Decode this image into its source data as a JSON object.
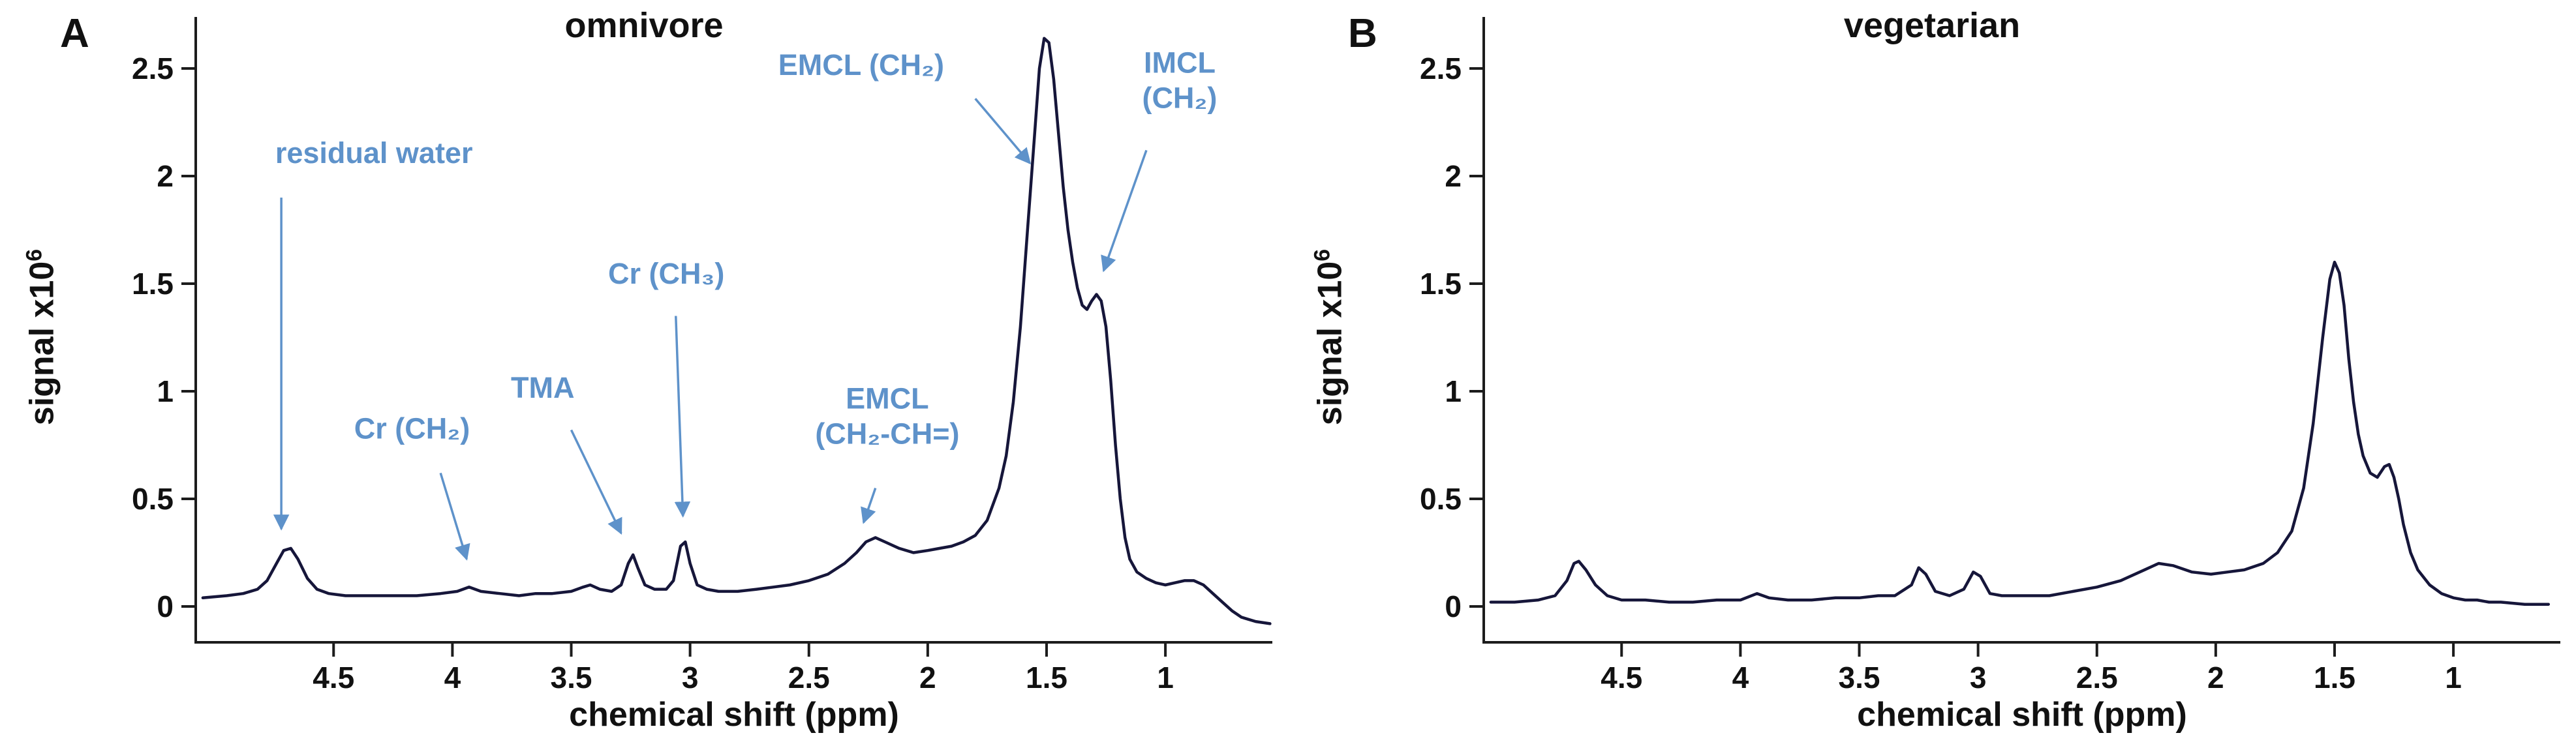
{
  "figure": {
    "axis_color": "#1c1c1c",
    "curve_color": "#16163a",
    "annotation_color": "#5e92ca",
    "text_color": "#111111"
  },
  "chart_data": [
    {
      "type": "line",
      "panel_label": "A",
      "title": "omnivore",
      "xlabel": "chemical shift (ppm)",
      "ylabel": "signal x10",
      "ylabel_exponent": "6",
      "x_axis_reversed": true,
      "xlim": [
        5.08,
        0.55
      ],
      "ylim": [
        -0.17,
        2.72
      ],
      "grid": false,
      "legend": "none",
      "x_ticks": [
        [
          4.5,
          "4.5"
        ],
        [
          4,
          "4"
        ],
        [
          3.5,
          "3.5"
        ],
        [
          3,
          "3"
        ],
        [
          2.5,
          "2.5"
        ],
        [
          2,
          "2"
        ],
        [
          1.5,
          "1.5"
        ],
        [
          1,
          "1"
        ]
      ],
      "y_ticks": [
        [
          0,
          "0"
        ],
        [
          0.5,
          "0.5"
        ],
        [
          1,
          "1"
        ],
        [
          1.5,
          "1.5"
        ],
        [
          2,
          "2"
        ],
        [
          2.5,
          "2.5"
        ]
      ],
      "series": [
        {
          "name": "omnivore spectrum",
          "points": [
            [
              5.05,
              0.04
            ],
            [
              4.95,
              0.05
            ],
            [
              4.88,
              0.06
            ],
            [
              4.82,
              0.08
            ],
            [
              4.78,
              0.12
            ],
            [
              4.74,
              0.2
            ],
            [
              4.71,
              0.26
            ],
            [
              4.68,
              0.27
            ],
            [
              4.65,
              0.22
            ],
            [
              4.61,
              0.13
            ],
            [
              4.57,
              0.08
            ],
            [
              4.52,
              0.06
            ],
            [
              4.45,
              0.05
            ],
            [
              4.35,
              0.05
            ],
            [
              4.25,
              0.05
            ],
            [
              4.15,
              0.05
            ],
            [
              4.05,
              0.06
            ],
            [
              3.98,
              0.07
            ],
            [
              3.93,
              0.09
            ],
            [
              3.88,
              0.07
            ],
            [
              3.8,
              0.06
            ],
            [
              3.72,
              0.05
            ],
            [
              3.65,
              0.06
            ],
            [
              3.58,
              0.06
            ],
            [
              3.5,
              0.07
            ],
            [
              3.45,
              0.09
            ],
            [
              3.42,
              0.1
            ],
            [
              3.38,
              0.08
            ],
            [
              3.33,
              0.07
            ],
            [
              3.29,
              0.1
            ],
            [
              3.26,
              0.2
            ],
            [
              3.24,
              0.24
            ],
            [
              3.22,
              0.18
            ],
            [
              3.19,
              0.1
            ],
            [
              3.15,
              0.08
            ],
            [
              3.1,
              0.08
            ],
            [
              3.07,
              0.12
            ],
            [
              3.04,
              0.28
            ],
            [
              3.02,
              0.3
            ],
            [
              3.0,
              0.2
            ],
            [
              2.97,
              0.1
            ],
            [
              2.93,
              0.08
            ],
            [
              2.88,
              0.07
            ],
            [
              2.8,
              0.07
            ],
            [
              2.72,
              0.08
            ],
            [
              2.65,
              0.09
            ],
            [
              2.58,
              0.1
            ],
            [
              2.5,
              0.12
            ],
            [
              2.42,
              0.15
            ],
            [
              2.35,
              0.2
            ],
            [
              2.3,
              0.25
            ],
            [
              2.26,
              0.3
            ],
            [
              2.22,
              0.32
            ],
            [
              2.18,
              0.3
            ],
            [
              2.12,
              0.27
            ],
            [
              2.06,
              0.25
            ],
            [
              2.0,
              0.26
            ],
            [
              1.95,
              0.27
            ],
            [
              1.9,
              0.28
            ],
            [
              1.85,
              0.3
            ],
            [
              1.8,
              0.33
            ],
            [
              1.75,
              0.4
            ],
            [
              1.7,
              0.55
            ],
            [
              1.67,
              0.7
            ],
            [
              1.64,
              0.95
            ],
            [
              1.61,
              1.3
            ],
            [
              1.58,
              1.75
            ],
            [
              1.55,
              2.2
            ],
            [
              1.53,
              2.5
            ],
            [
              1.51,
              2.64
            ],
            [
              1.49,
              2.62
            ],
            [
              1.47,
              2.45
            ],
            [
              1.45,
              2.2
            ],
            [
              1.43,
              1.95
            ],
            [
              1.41,
              1.75
            ],
            [
              1.39,
              1.6
            ],
            [
              1.37,
              1.48
            ],
            [
              1.35,
              1.4
            ],
            [
              1.33,
              1.38
            ],
            [
              1.31,
              1.42
            ],
            [
              1.29,
              1.45
            ],
            [
              1.27,
              1.42
            ],
            [
              1.25,
              1.3
            ],
            [
              1.23,
              1.05
            ],
            [
              1.21,
              0.75
            ],
            [
              1.19,
              0.5
            ],
            [
              1.17,
              0.32
            ],
            [
              1.15,
              0.22
            ],
            [
              1.12,
              0.16
            ],
            [
              1.08,
              0.13
            ],
            [
              1.04,
              0.11
            ],
            [
              1.0,
              0.1
            ],
            [
              0.96,
              0.11
            ],
            [
              0.92,
              0.12
            ],
            [
              0.88,
              0.12
            ],
            [
              0.84,
              0.1
            ],
            [
              0.8,
              0.06
            ],
            [
              0.76,
              0.02
            ],
            [
              0.72,
              -0.02
            ],
            [
              0.68,
              -0.05
            ],
            [
              0.62,
              -0.07
            ],
            [
              0.56,
              -0.08
            ]
          ]
        }
      ],
      "annotations": [
        {
          "lines": [
            "residual water"
          ],
          "x": 4.33,
          "y": 2.06,
          "arrow": [
            4.72,
            1.9,
            4.72,
            0.36
          ]
        },
        {
          "lines": [
            "Cr (CH₂)"
          ],
          "x": 4.17,
          "y": 0.78,
          "arrow": [
            4.05,
            0.62,
            3.94,
            0.22
          ]
        },
        {
          "lines": [
            "TMA"
          ],
          "x": 3.62,
          "y": 0.97,
          "arrow": [
            3.5,
            0.82,
            3.29,
            0.34
          ]
        },
        {
          "lines": [
            "Cr (CH₃)"
          ],
          "x": 3.1,
          "y": 1.5,
          "arrow": [
            3.06,
            1.35,
            3.03,
            0.42
          ]
        },
        {
          "lines": [
            "EMCL",
            "(CH₂-CH=)"
          ],
          "x": 2.17,
          "y": 0.92,
          "arrow": [
            2.22,
            0.55,
            2.27,
            0.39
          ]
        },
        {
          "lines": [
            "EMCL (CH₂)"
          ],
          "x": 2.28,
          "y": 2.47,
          "arrow": [
            1.8,
            2.36,
            1.57,
            2.06
          ]
        },
        {
          "lines": [
            "IMCL",
            "(CH₂)"
          ],
          "x": 0.94,
          "y": 2.48,
          "arrow": [
            1.08,
            2.12,
            1.26,
            1.56
          ]
        }
      ]
    },
    {
      "type": "line",
      "panel_label": "B",
      "title": "vegetarian",
      "xlabel": "chemical shift (ppm)",
      "ylabel": "signal x10",
      "ylabel_exponent": "6",
      "x_axis_reversed": true,
      "xlim": [
        5.08,
        0.55
      ],
      "ylim": [
        -0.17,
        2.72
      ],
      "grid": false,
      "legend": "none",
      "x_ticks": [
        [
          4.5,
          "4.5"
        ],
        [
          4,
          "4"
        ],
        [
          3.5,
          "3.5"
        ],
        [
          3,
          "3"
        ],
        [
          2.5,
          "2.5"
        ],
        [
          2,
          "2"
        ],
        [
          1.5,
          "1.5"
        ],
        [
          1,
          "1"
        ]
      ],
      "y_ticks": [
        [
          0,
          "0"
        ],
        [
          0.5,
          "0.5"
        ],
        [
          1,
          "1"
        ],
        [
          1.5,
          "1.5"
        ],
        [
          2,
          "2"
        ],
        [
          2.5,
          "2.5"
        ]
      ],
      "series": [
        {
          "name": "vegetarian spectrum",
          "points": [
            [
              5.05,
              0.02
            ],
            [
              4.95,
              0.02
            ],
            [
              4.85,
              0.03
            ],
            [
              4.78,
              0.05
            ],
            [
              4.73,
              0.12
            ],
            [
              4.7,
              0.2
            ],
            [
              4.68,
              0.21
            ],
            [
              4.65,
              0.17
            ],
            [
              4.61,
              0.1
            ],
            [
              4.56,
              0.05
            ],
            [
              4.5,
              0.03
            ],
            [
              4.4,
              0.03
            ],
            [
              4.3,
              0.02
            ],
            [
              4.2,
              0.02
            ],
            [
              4.1,
              0.03
            ],
            [
              4.0,
              0.03
            ],
            [
              3.93,
              0.06
            ],
            [
              3.88,
              0.04
            ],
            [
              3.8,
              0.03
            ],
            [
              3.7,
              0.03
            ],
            [
              3.6,
              0.04
            ],
            [
              3.5,
              0.04
            ],
            [
              3.42,
              0.05
            ],
            [
              3.35,
              0.05
            ],
            [
              3.28,
              0.1
            ],
            [
              3.25,
              0.18
            ],
            [
              3.22,
              0.15
            ],
            [
              3.18,
              0.07
            ],
            [
              3.12,
              0.05
            ],
            [
              3.06,
              0.08
            ],
            [
              3.02,
              0.16
            ],
            [
              2.99,
              0.14
            ],
            [
              2.95,
              0.06
            ],
            [
              2.9,
              0.05
            ],
            [
              2.8,
              0.05
            ],
            [
              2.7,
              0.05
            ],
            [
              2.6,
              0.07
            ],
            [
              2.5,
              0.09
            ],
            [
              2.4,
              0.12
            ],
            [
              2.3,
              0.17
            ],
            [
              2.24,
              0.2
            ],
            [
              2.18,
              0.19
            ],
            [
              2.1,
              0.16
            ],
            [
              2.02,
              0.15
            ],
            [
              1.95,
              0.16
            ],
            [
              1.88,
              0.17
            ],
            [
              1.8,
              0.2
            ],
            [
              1.74,
              0.25
            ],
            [
              1.68,
              0.35
            ],
            [
              1.63,
              0.55
            ],
            [
              1.59,
              0.85
            ],
            [
              1.55,
              1.25
            ],
            [
              1.52,
              1.52
            ],
            [
              1.5,
              1.6
            ],
            [
              1.48,
              1.55
            ],
            [
              1.46,
              1.4
            ],
            [
              1.44,
              1.15
            ],
            [
              1.42,
              0.95
            ],
            [
              1.4,
              0.8
            ],
            [
              1.38,
              0.7
            ],
            [
              1.35,
              0.62
            ],
            [
              1.32,
              0.6
            ],
            [
              1.29,
              0.65
            ],
            [
              1.27,
              0.66
            ],
            [
              1.25,
              0.6
            ],
            [
              1.23,
              0.5
            ],
            [
              1.21,
              0.38
            ],
            [
              1.18,
              0.25
            ],
            [
              1.15,
              0.17
            ],
            [
              1.1,
              0.1
            ],
            [
              1.05,
              0.06
            ],
            [
              1.0,
              0.04
            ],
            [
              0.95,
              0.03
            ],
            [
              0.9,
              0.03
            ],
            [
              0.85,
              0.02
            ],
            [
              0.8,
              0.02
            ],
            [
              0.7,
              0.01
            ],
            [
              0.6,
              0.01
            ]
          ]
        }
      ],
      "annotations": []
    }
  ]
}
